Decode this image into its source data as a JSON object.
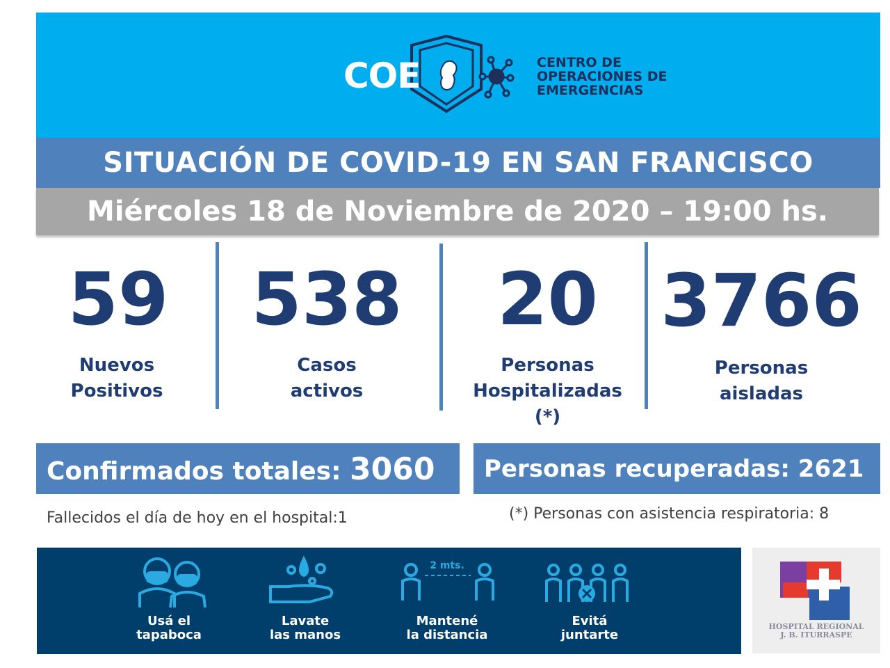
{
  "header": {
    "logo_word": "COE",
    "logo_sub": [
      "CENTRO DE",
      "OPERACIONES DE",
      "EMERGENCIAS"
    ]
  },
  "title": "SITUACIÓN DE COVID-19 EN SAN FRANCISCO",
  "date": "Miércoles 18 de Noviembre de 2020 – 19:00 hs.",
  "stats": [
    {
      "value": "59",
      "label": [
        "Nuevos",
        "Positivos"
      ]
    },
    {
      "value": "538",
      "label": [
        "Casos",
        "activos"
      ]
    },
    {
      "value": "20",
      "label": [
        "Personas",
        "Hospitalizadas",
        "(*)"
      ]
    },
    {
      "value": "3766",
      "label": [
        "Personas",
        "aisladas"
      ]
    }
  ],
  "totals": {
    "confirmed_label": "Confirmados totales: ",
    "confirmed_value": "3060",
    "recovered": "Personas recuperadas: 2621"
  },
  "notes": {
    "deaths": "Fallecidos el día de hoy en el hospital:1",
    "respiratory": "(*) Personas con asistencia respiratoria: 8"
  },
  "tips": [
    {
      "icon": "mask-people-icon",
      "label": [
        "Usá el",
        "tapaboca"
      ]
    },
    {
      "icon": "wash-hands-icon",
      "label": [
        "Lavate",
        "las manos"
      ]
    },
    {
      "icon": "distance-icon",
      "label": [
        "Mantené",
        "la distancia"
      ],
      "distance_text": "2 mts."
    },
    {
      "icon": "no-gathering-icon",
      "label": [
        "Evitá",
        "juntarte"
      ]
    }
  ],
  "hospital": {
    "name": [
      "HOSPITAL REGIONAL",
      "J. B. ITURRASPE"
    ]
  },
  "colors": {
    "header_bg": "#00aeef",
    "bar_blue": "#4f81bd",
    "date_gray": "#a6a6a6",
    "stat_navy": "#1f3c73",
    "banner_bg": "#003f6b"
  }
}
